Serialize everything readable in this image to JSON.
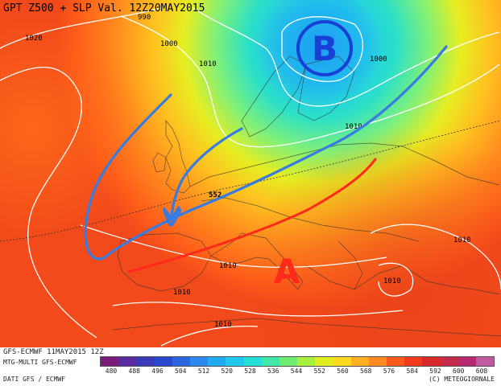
{
  "map": {
    "title": "GPT Z500 + SLP Val. 12Z20MAY2015",
    "isobar_labels": [
      {
        "text": "990",
        "name": "isobar-label-990"
      },
      {
        "text": "1000",
        "name": "isobar-label-1000-atlantic"
      },
      {
        "text": "1020",
        "name": "isobar-label-1020"
      },
      {
        "text": "1010",
        "name": "isobar-label-1010-britain"
      },
      {
        "text": "1000",
        "name": "isobar-label-1000-russia"
      },
      {
        "text": "1010",
        "name": "isobar-label-1010-baltic"
      },
      {
        "text": "552",
        "name": "isoheight-label-552"
      },
      {
        "text": "1010",
        "name": "isobar-label-1010-east"
      },
      {
        "text": "1010",
        "name": "isobar-label-1010-balkans"
      },
      {
        "text": "1010",
        "name": "isobar-label-1010-mediterranean"
      },
      {
        "text": "1010",
        "name": "isobar-label-1010-africa"
      },
      {
        "text": "1010",
        "name": "isobar-label-1010-sahara"
      }
    ],
    "low_symbol": "B",
    "high_symbol": "A",
    "colors": {
      "low_circle": "#1a3fd6",
      "high_letter": "#ff2a1a",
      "trough_arrow": "#3a7be0",
      "ridge_line": "#ff2a1a"
    }
  },
  "footer": {
    "model_line": "GFS-ECMWF 11MAY2015 12Z",
    "product_line": "MTG-MULTI GFS-ECMWF",
    "data_line": "DATI GFS / ECMWF",
    "copyright": "(C) METEOGIORNALE",
    "scale_ticks": [
      "480",
      "488",
      "496",
      "504",
      "512",
      "520",
      "528",
      "536",
      "544",
      "552",
      "560",
      "568",
      "576",
      "584",
      "592",
      "600",
      "608"
    ],
    "scale_colors": [
      "#7a1a7a",
      "#5a2aa0",
      "#3a3ab8",
      "#2a48d0",
      "#2a66e0",
      "#2a88ee",
      "#22aaf0",
      "#20c8ee",
      "#22e0d8",
      "#40e8a8",
      "#70ee70",
      "#a8f040",
      "#e0ee20",
      "#ffd820",
      "#ffb020",
      "#ff8820",
      "#ff5a1a",
      "#f03a1a",
      "#d82a2a",
      "#c42a4a",
      "#b82a70",
      "#c05aa0"
    ]
  }
}
